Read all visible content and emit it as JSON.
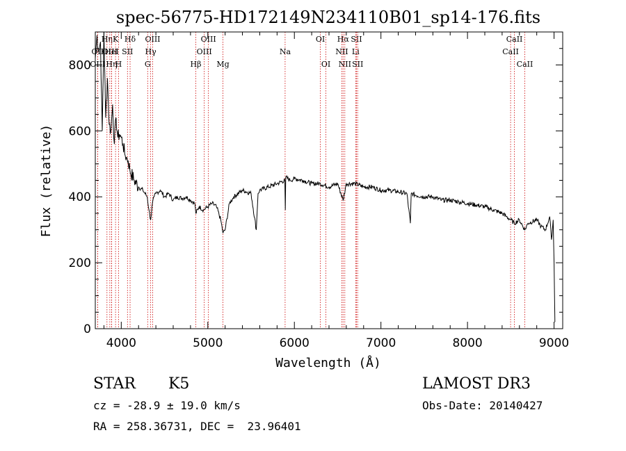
{
  "chart_data": {
    "type": "line",
    "title": "spec-56775-HD172149N234110B01_sp14-176.fits",
    "xlabel": "Wavelength (Å)",
    "ylabel": "Flux (relative)",
    "xlim": [
      3700,
      9100
    ],
    "ylim": [
      0,
      900
    ],
    "xticks": [
      4000,
      5000,
      6000,
      7000,
      8000,
      9000
    ],
    "yticks": [
      0,
      200,
      400,
      600,
      800
    ],
    "grid": false,
    "series": [
      {
        "x": [
          3700,
          3720,
          3740,
          3760,
          3780,
          3800,
          3820,
          3840,
          3860,
          3880,
          3900,
          3920,
          3940,
          3960,
          3980,
          4000,
          4020,
          4040,
          4060,
          4080,
          4100,
          4150,
          4200,
          4250,
          4300,
          4320,
          4340,
          4360,
          4380,
          4400,
          4450,
          4500,
          4550,
          4600,
          4650,
          4700,
          4750,
          4800,
          4850,
          4861,
          4900,
          4950,
          5000,
          5050,
          5100,
          5150,
          5175,
          5200,
          5250,
          5300,
          5400,
          5500,
          5560,
          5580,
          5600,
          5700,
          5800,
          5890,
          5895,
          5900,
          5950,
          6000,
          6100,
          6200,
          6300,
          6400,
          6500,
          6563,
          6600,
          6700,
          6800,
          6900,
          7000,
          7100,
          7200,
          7300,
          7340,
          7350,
          7400,
          7500,
          7600,
          7700,
          7800,
          7900,
          8000,
          8100,
          8200,
          8300,
          8400,
          8450,
          8500,
          8540,
          8600,
          8662,
          8700,
          8800,
          8850,
          8900,
          8950,
          8970,
          8990,
          9000,
          9010
        ],
        "values": [
          820,
          890,
          840,
          870,
          600,
          900,
          640,
          760,
          620,
          600,
          680,
          560,
          640,
          580,
          590,
          580,
          560,
          530,
          520,
          510,
          480,
          450,
          430,
          420,
          400,
          360,
          330,
          380,
          400,
          410,
          420,
          400,
          410,
          390,
          400,
          395,
          400,
          390,
          380,
          350,
          370,
          360,
          370,
          380,
          370,
          330,
          290,
          300,
          380,
          400,
          420,
          410,
          300,
          410,
          420,
          430,
          440,
          450,
          360,
          460,
          450,
          455,
          450,
          440,
          440,
          430,
          440,
          390,
          440,
          440,
          430,
          430,
          420,
          420,
          415,
          410,
          320,
          410,
          405,
          400,
          400,
          390,
          390,
          385,
          380,
          375,
          370,
          360,
          350,
          340,
          330,
          320,
          330,
          300,
          320,
          330,
          310,
          300,
          340,
          270,
          330,
          200,
          20
        ]
      }
    ],
    "lines": [
      {
        "label": "Hη",
        "x": 3835,
        "row": 0
      },
      {
        "label": "OII",
        "x": 3727,
        "row": 1
      },
      {
        "label": "OIII",
        "x": 3868,
        "row": 1
      },
      {
        "label": "HeI",
        "x": 3889,
        "row": 1
      },
      {
        "label": "OIII",
        "x": 3727,
        "row": 2
      },
      {
        "label": "Hη",
        "x": 3889,
        "row": 2
      },
      {
        "label": "K",
        "x": 3934,
        "row": 0
      },
      {
        "label": "H",
        "x": 3969,
        "row": 2
      },
      {
        "label": "SII",
        "x": 4072,
        "row": 1
      },
      {
        "label": "Hδ",
        "x": 4102,
        "row": 0
      },
      {
        "label": "OIII",
        "x": 4363,
        "row": 0
      },
      {
        "label": "Hγ",
        "x": 4340,
        "row": 1
      },
      {
        "label": "G",
        "x": 4305,
        "row": 2
      },
      {
        "label": "Hβ",
        "x": 4861,
        "row": 2
      },
      {
        "label": "OIII",
        "x": 5007,
        "row": 0
      },
      {
        "label": "OIII",
        "x": 4959,
        "row": 1
      },
      {
        "label": "Mg",
        "x": 5175,
        "row": 2
      },
      {
        "label": "Na",
        "x": 5893,
        "row": 1
      },
      {
        "label": "OI",
        "x": 6300,
        "row": 0
      },
      {
        "label": "OI",
        "x": 6364,
        "row": 2
      },
      {
        "label": "Hα",
        "x": 6563,
        "row": 0
      },
      {
        "label": "NII",
        "x": 6548,
        "row": 1
      },
      {
        "label": "NII",
        "x": 6583,
        "row": 2
      },
      {
        "label": "SII",
        "x": 6717,
        "row": 0
      },
      {
        "label": "Li",
        "x": 6708,
        "row": 1
      },
      {
        "label": "SII",
        "x": 6731,
        "row": 2
      },
      {
        "label": "CaII",
        "x": 8542,
        "row": 0
      },
      {
        "label": "CaII",
        "x": 8498,
        "row": 1
      },
      {
        "label": "CaII",
        "x": 8662,
        "row": 2
      }
    ]
  },
  "info": {
    "class": "STAR",
    "subclass": "K5",
    "survey": "LAMOST DR3",
    "cz": "cz = -28.9 ± 19.0 km/s",
    "obs_date": "Obs-Date: 20140427",
    "radec": "RA = 258.36731, DEC =  23.96401"
  }
}
